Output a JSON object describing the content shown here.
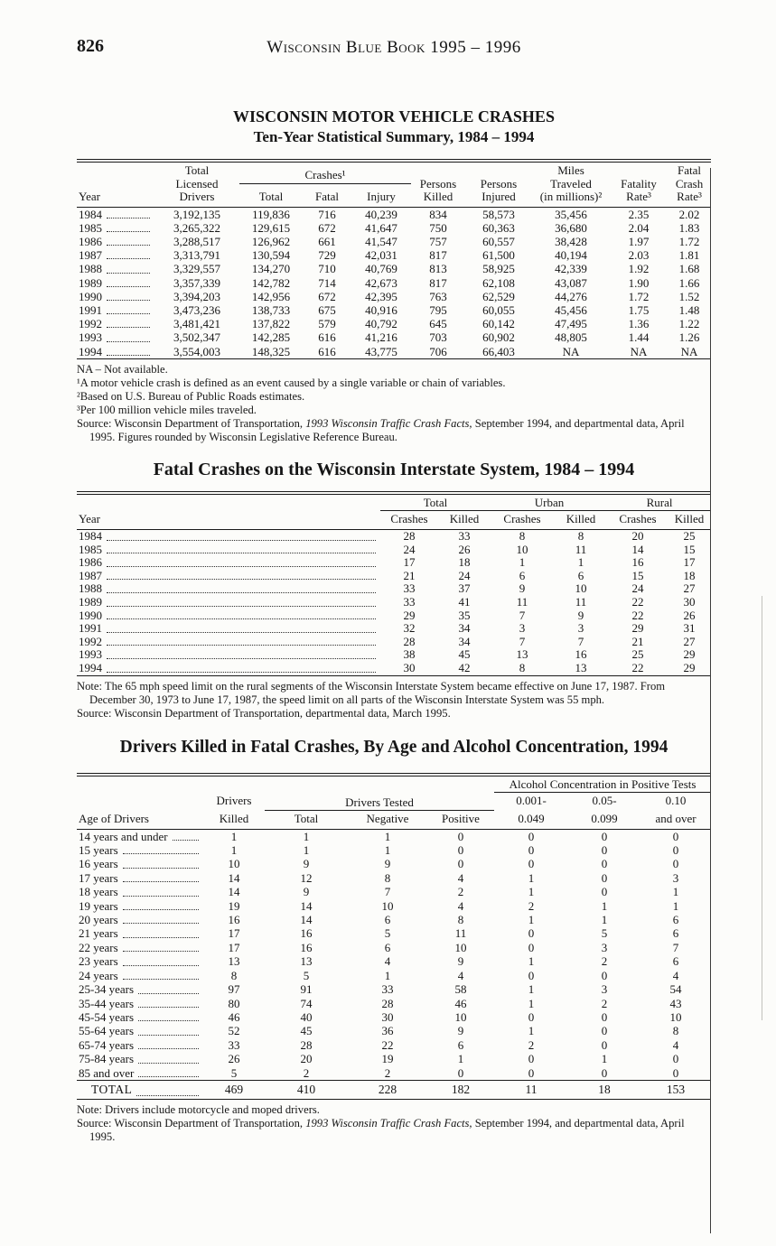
{
  "page": {
    "number": "826",
    "running_header": "Wisconsin Blue Book 1995 – 1996"
  },
  "table1": {
    "title_line1": "WISCONSIN MOTOR VEHICLE CRASHES",
    "title_line2": "Ten-Year Statistical Summary, 1984 – 1994",
    "headers": {
      "year": "Year",
      "licensed_drivers": "Total\nLicensed\nDrivers",
      "crashes_group": "Crashes¹",
      "crashes_total": "Total",
      "crashes_fatal": "Fatal",
      "crashes_injury": "Injury",
      "persons_killed": "Persons\nKilled",
      "persons_injured": "Persons\nInjured",
      "miles_traveled": "Miles\nTraveled\n(in millions)²",
      "fatality_rate": "Fatality\nRate³",
      "fatal_crash_rate": "Fatal\nCrash\nRate³"
    },
    "rows": [
      [
        "1984",
        "3,192,135",
        "119,836",
        "716",
        "40,239",
        "834",
        "58,573",
        "35,456",
        "2.35",
        "2.02"
      ],
      [
        "1985",
        "3,265,322",
        "129,615",
        "672",
        "41,647",
        "750",
        "60,363",
        "36,680",
        "2.04",
        "1.83"
      ],
      [
        "1986",
        "3,288,517",
        "126,962",
        "661",
        "41,547",
        "757",
        "60,557",
        "38,428",
        "1.97",
        "1.72"
      ],
      [
        "1987",
        "3,313,791",
        "130,594",
        "729",
        "42,031",
        "817",
        "61,500",
        "40,194",
        "2.03",
        "1.81"
      ],
      [
        "1988",
        "3,329,557",
        "134,270",
        "710",
        "40,769",
        "813",
        "58,925",
        "42,339",
        "1.92",
        "1.68"
      ],
      [
        "1989",
        "3,357,339",
        "142,782",
        "714",
        "42,673",
        "817",
        "62,108",
        "43,087",
        "1.90",
        "1.66"
      ],
      [
        "1990",
        "3,394,203",
        "142,956",
        "672",
        "42,395",
        "763",
        "62,529",
        "44,276",
        "1.72",
        "1.52"
      ],
      [
        "1991",
        "3,473,236",
        "138,733",
        "675",
        "40,916",
        "795",
        "60,055",
        "45,456",
        "1.75",
        "1.48"
      ],
      [
        "1992",
        "3,481,421",
        "137,822",
        "579",
        "40,792",
        "645",
        "60,142",
        "47,495",
        "1.36",
        "1.22"
      ],
      [
        "1993",
        "3,502,347",
        "142,285",
        "616",
        "41,216",
        "703",
        "60,902",
        "48,805",
        "1.44",
        "1.26"
      ],
      [
        "1994",
        "3,554,003",
        "148,325",
        "616",
        "43,775",
        "706",
        "66,403",
        "NA",
        "NA",
        "NA"
      ]
    ],
    "notes": [
      "NA – Not available.",
      "¹A motor vehicle crash is defined as an event caused by a single variable or chain of variables.",
      "²Based on U.S. Bureau of Public Roads estimates.",
      "³Per 100 million vehicle miles traveled."
    ],
    "source": [
      {
        "t": "Source: Wisconsin Department of Transportation, "
      },
      {
        "t": "1993 Wisconsin Traffic Crash Facts,",
        "i": true
      },
      {
        "t": " September 1994, and departmental data, April 1995. Figures rounded by Wisconsin Legislative Reference Bureau."
      }
    ]
  },
  "table2": {
    "title": "Fatal Crashes on the Wisconsin Interstate System, 1984 – 1994",
    "headers": {
      "year": "Year",
      "total_group": "Total",
      "urban_group": "Urban",
      "rural_group": "Rural",
      "crashes": "Crashes",
      "killed": "Killed"
    },
    "rows": [
      [
        "1984",
        "28",
        "33",
        "8",
        "8",
        "20",
        "25"
      ],
      [
        "1985",
        "24",
        "26",
        "10",
        "11",
        "14",
        "15"
      ],
      [
        "1986",
        "17",
        "18",
        "1",
        "1",
        "16",
        "17"
      ],
      [
        "1987",
        "21",
        "24",
        "6",
        "6",
        "15",
        "18"
      ],
      [
        "1988",
        "33",
        "37",
        "9",
        "10",
        "24",
        "27"
      ],
      [
        "1989",
        "33",
        "41",
        "11",
        "11",
        "22",
        "30"
      ],
      [
        "1990",
        "29",
        "35",
        "7",
        "9",
        "22",
        "26"
      ],
      [
        "1991",
        "32",
        "34",
        "3",
        "3",
        "29",
        "31"
      ],
      [
        "1992",
        "28",
        "34",
        "7",
        "7",
        "21",
        "27"
      ],
      [
        "1993",
        "38",
        "45",
        "13",
        "16",
        "25",
        "29"
      ],
      [
        "1994",
        "30",
        "42",
        "8",
        "13",
        "22",
        "29"
      ]
    ],
    "note": "Note: The 65 mph speed limit on the rural segments of the Wisconsin Interstate System became effective on June 17, 1987. From December 30, 1973 to June 17, 1987, the speed limit on all parts of the Wisconsin Interstate System was 55 mph.",
    "source": [
      {
        "t": "Source: Wisconsin Department of Transportation, departmental data, March 1995."
      }
    ]
  },
  "table3": {
    "title": "Drivers Killed in Fatal Crashes, By Age and Alcohol Concentration, 1994",
    "headers": {
      "alcohol_group": "Alcohol Concentration in Positive Tests",
      "drivers": "Drivers",
      "tested_group": "Drivers Tested",
      "age_of_drivers": "Age of Drivers",
      "killed": "Killed",
      "total": "Total",
      "negative": "Negative",
      "positive": "Positive",
      "c1a": "0.001-",
      "c1b": "0.049",
      "c2a": "0.05-",
      "c2b": "0.099",
      "c3a": "0.10",
      "c3b": "and over"
    },
    "rows": [
      [
        "14 years and under",
        "1",
        "1",
        "1",
        "0",
        "0",
        "0",
        "0"
      ],
      [
        "15 years",
        "1",
        "1",
        "1",
        "0",
        "0",
        "0",
        "0"
      ],
      [
        "16 years",
        "10",
        "9",
        "9",
        "0",
        "0",
        "0",
        "0"
      ],
      [
        "17 years",
        "14",
        "12",
        "8",
        "4",
        "1",
        "0",
        "3"
      ],
      [
        "18 years",
        "14",
        "9",
        "7",
        "2",
        "1",
        "0",
        "1"
      ],
      [
        "19 years",
        "19",
        "14",
        "10",
        "4",
        "2",
        "1",
        "1"
      ],
      [
        "20 years",
        "16",
        "14",
        "6",
        "8",
        "1",
        "1",
        "6"
      ],
      [
        "21 years",
        "17",
        "16",
        "5",
        "11",
        "0",
        "5",
        "6"
      ],
      [
        "22 years",
        "17",
        "16",
        "6",
        "10",
        "0",
        "3",
        "7"
      ],
      [
        "23 years",
        "13",
        "13",
        "4",
        "9",
        "1",
        "2",
        "6"
      ],
      [
        "24 years",
        "8",
        "5",
        "1",
        "4",
        "0",
        "0",
        "4"
      ],
      [
        "25-34 years",
        "97",
        "91",
        "33",
        "58",
        "1",
        "3",
        "54"
      ],
      [
        "35-44 years",
        "80",
        "74",
        "28",
        "46",
        "1",
        "2",
        "43"
      ],
      [
        "45-54 years",
        "46",
        "40",
        "30",
        "10",
        "0",
        "0",
        "10"
      ],
      [
        "55-64 years",
        "52",
        "45",
        "36",
        "9",
        "1",
        "0",
        "8"
      ],
      [
        "65-74 years",
        "33",
        "28",
        "22",
        "6",
        "2",
        "0",
        "4"
      ],
      [
        "75-84 years",
        "26",
        "20",
        "19",
        "1",
        "0",
        "1",
        "0"
      ],
      [
        "85 and over",
        "5",
        "2",
        "2",
        "0",
        "0",
        "0",
        "0"
      ]
    ],
    "total_row": [
      [
        "TOTAL",
        "469",
        "410",
        "228",
        "182",
        "11",
        "18",
        "153"
      ]
    ],
    "note": "Note: Drivers include motorcycle and moped drivers.",
    "source": [
      {
        "t": "Source: Wisconsin Department of Transportation, "
      },
      {
        "t": "1993 Wisconsin Traffic Crash Facts,",
        "i": true
      },
      {
        "t": " September 1994, and departmental data, April 1995."
      }
    ]
  }
}
